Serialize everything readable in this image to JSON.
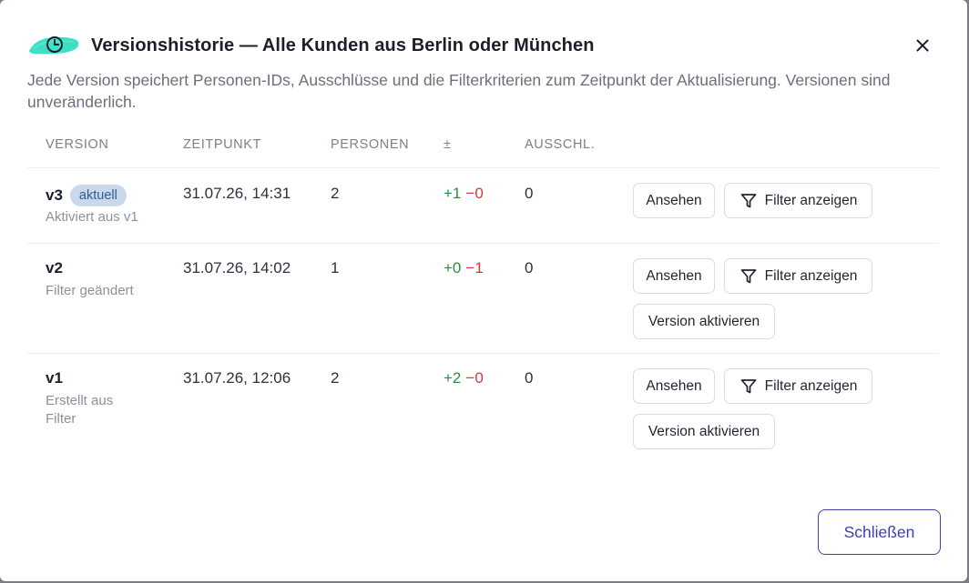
{
  "modal": {
    "title": "Versionshistorie — Alle Kunden aus Berlin oder München",
    "description": "Jede Version speichert Personen-IDs, Ausschlüsse und die Filterkriterien zum Zeitpunkt der Aktualisierung. Versionen sind unveränderlich.",
    "close_icon": "close-icon",
    "title_icon": "clock-icon",
    "accent_color": "#3ee0c4",
    "primary_color": "#3d3fb0"
  },
  "table": {
    "headers": {
      "version": "VERSION",
      "zeitpunkt": "ZEITPUNKT",
      "personen": "PERSONEN",
      "delta": "±",
      "ausschl": "AUSSCHL."
    },
    "rows": [
      {
        "version": "v3",
        "badge": "aktuell",
        "subtitle": "Aktiviert aus v1",
        "zeitpunkt": "31.07.26, 14:31",
        "personen": "2",
        "plus": "+1",
        "minus": "−0",
        "ausschl": "0",
        "view_label": "Ansehen",
        "filter_label": "Filter anzeigen"
      },
      {
        "version": "v2",
        "subtitle": "Filter geändert",
        "zeitpunkt": "31.07.26, 14:02",
        "personen": "1",
        "plus": "+0",
        "minus": "−1",
        "ausschl": "0",
        "view_label": "Ansehen",
        "filter_label": "Filter anzeigen",
        "activate_label": "Version aktivieren"
      },
      {
        "version": "v1",
        "subtitle_line1": "Erstellt aus",
        "subtitle_line2": "Filter",
        "zeitpunkt": "31.07.26, 12:06",
        "personen": "2",
        "plus": "+2",
        "minus": "−0",
        "ausschl": "0",
        "view_label": "Ansehen",
        "filter_label": "Filter anzeigen",
        "activate_label": "Version aktivieren"
      }
    ]
  },
  "footer": {
    "close_label": "Schließen"
  }
}
